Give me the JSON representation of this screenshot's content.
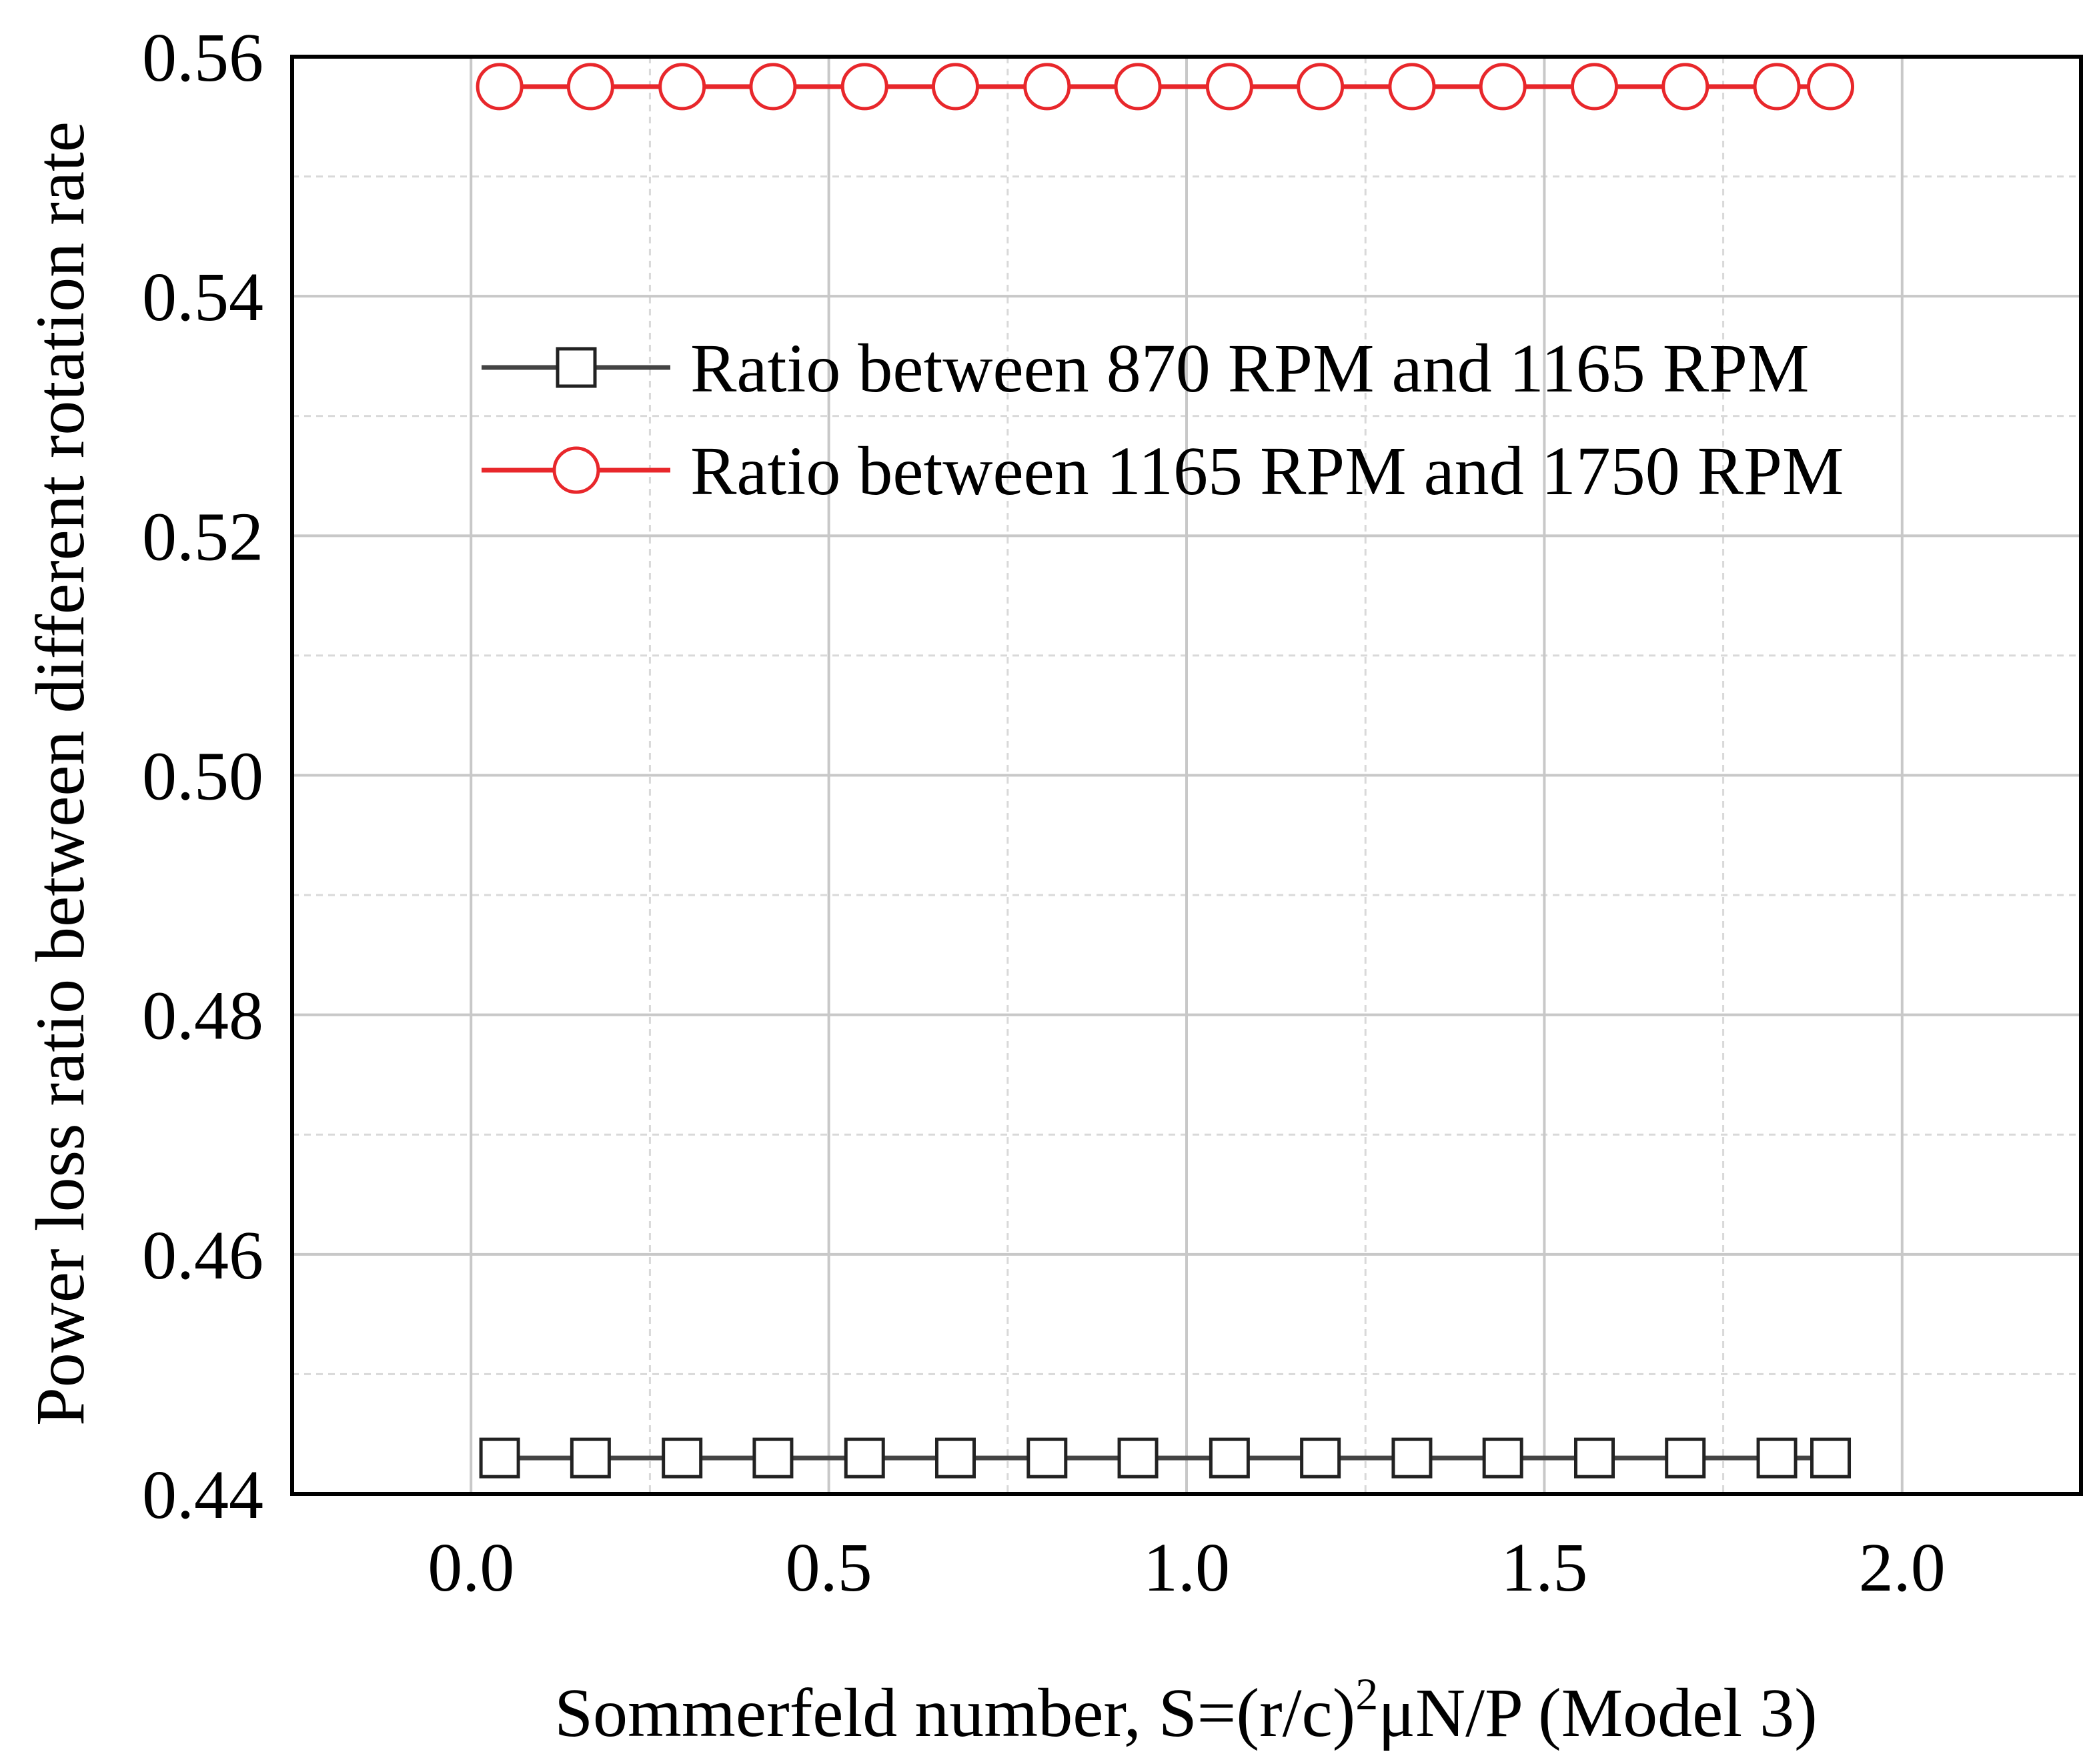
{
  "chart_data": {
    "type": "line",
    "title": "",
    "xlabel_parts": {
      "base": "Sommerfeld number, S=(r/c)",
      "superscript": "2",
      "rest": "μN/P (Model 3)"
    },
    "ylabel": "Power loss ratio between different rotation rate",
    "xlim": [
      -0.25,
      2.25
    ],
    "ylim": [
      0.44,
      0.56
    ],
    "x_ticks": [
      "0.0",
      "0.5",
      "1.0",
      "1.5",
      "2.0"
    ],
    "y_ticks": [
      "0.44",
      "0.46",
      "0.48",
      "0.50",
      "0.52",
      "0.54",
      "0.56"
    ],
    "grid": true,
    "legend_position": "upper-center-right",
    "x": [
      0.04,
      0.167,
      0.295,
      0.422,
      0.55,
      0.677,
      0.805,
      0.932,
      1.06,
      1.187,
      1.315,
      1.442,
      1.57,
      1.697,
      1.825,
      1.9
    ],
    "series": [
      {
        "name": "Ratio between 870 RPM and 1165 RPM",
        "marker": "square",
        "color": "#444444",
        "values": [
          0.443,
          0.443,
          0.443,
          0.443,
          0.443,
          0.443,
          0.443,
          0.443,
          0.443,
          0.443,
          0.443,
          0.443,
          0.443,
          0.443,
          0.443,
          0.443
        ]
      },
      {
        "name": "Ratio between 1165 RPM and 1750 RPM",
        "marker": "circle",
        "color": "#e8272b",
        "values": [
          0.5575,
          0.5575,
          0.5575,
          0.5575,
          0.5575,
          0.5575,
          0.5575,
          0.5575,
          0.5575,
          0.5575,
          0.5575,
          0.5575,
          0.5575,
          0.5575,
          0.5575,
          0.5575
        ]
      }
    ]
  }
}
